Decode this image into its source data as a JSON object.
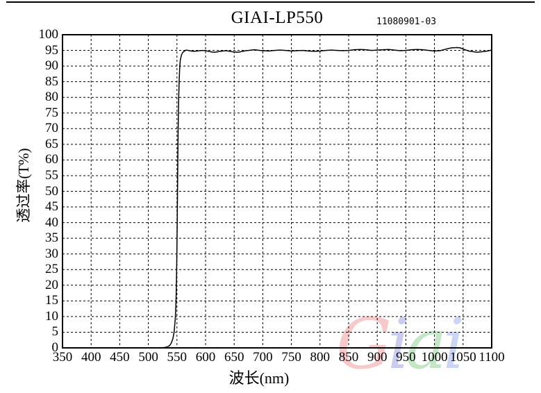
{
  "header": {
    "title": "GIAI-LP550",
    "serial": "11080901-03"
  },
  "watermark": {
    "text": "Giai",
    "letters": [
      {
        "char": "G",
        "color": "#f3a6a8"
      },
      {
        "char": "i",
        "color": "#a8a9e6"
      },
      {
        "char": "a",
        "color": "#9cd69e"
      },
      {
        "char": "i",
        "color": "#aabced"
      }
    ]
  },
  "chart_data": {
    "type": "line",
    "title": "GIAI-LP550",
    "xlabel": "波长(nm)",
    "ylabel": "透过率(T%)",
    "xlim": [
      350,
      1100
    ],
    "ylim": [
      0,
      100
    ],
    "x_ticks": [
      350,
      400,
      450,
      500,
      550,
      600,
      650,
      700,
      750,
      800,
      850,
      900,
      950,
      1000,
      1050,
      1100
    ],
    "y_ticks": [
      0,
      5,
      10,
      15,
      20,
      25,
      30,
      35,
      40,
      45,
      50,
      55,
      60,
      65,
      70,
      75,
      80,
      85,
      90,
      95,
      100
    ],
    "grid": "dashed-both-axes",
    "legend": "none",
    "line_color": "#000000",
    "description": "Long-pass filter transmission: ~0% below 540nm, sharp cut-on at ~550nm, ~95% transmission from 560-1100nm",
    "series": [
      {
        "name": "transmittance",
        "points": [
          [
            350,
            0
          ],
          [
            375,
            0
          ],
          [
            400,
            0
          ],
          [
            425,
            0
          ],
          [
            450,
            0
          ],
          [
            475,
            0
          ],
          [
            500,
            0
          ],
          [
            510,
            0
          ],
          [
            520,
            0.05
          ],
          [
            528,
            0.1
          ],
          [
            533,
            0.3
          ],
          [
            537,
            0.7
          ],
          [
            540,
            1.5
          ],
          [
            543,
            3
          ],
          [
            545,
            5
          ],
          [
            547,
            9
          ],
          [
            548,
            13
          ],
          [
            549,
            20
          ],
          [
            550,
            32
          ],
          [
            551,
            50
          ],
          [
            552,
            68
          ],
          [
            553,
            80
          ],
          [
            554,
            86
          ],
          [
            555,
            90
          ],
          [
            556,
            92
          ],
          [
            558,
            93.6
          ],
          [
            560,
            94.3
          ],
          [
            563,
            94.8
          ],
          [
            566,
            95.1
          ],
          [
            570,
            95.0
          ],
          [
            575,
            94.8
          ],
          [
            580,
            94.7
          ],
          [
            585,
            94.8
          ],
          [
            590,
            94.9
          ],
          [
            595,
            95.0
          ],
          [
            600,
            94.9
          ],
          [
            605,
            94.7
          ],
          [
            610,
            94.5
          ],
          [
            615,
            94.4
          ],
          [
            620,
            94.5
          ],
          [
            625,
            94.7
          ],
          [
            630,
            94.8
          ],
          [
            635,
            94.9
          ],
          [
            640,
            94.8
          ],
          [
            645,
            94.6
          ],
          [
            650,
            94.5
          ],
          [
            655,
            94.4
          ],
          [
            660,
            94.5
          ],
          [
            665,
            94.7
          ],
          [
            670,
            94.9
          ],
          [
            675,
            95.0
          ],
          [
            680,
            95.1
          ],
          [
            685,
            95.2
          ],
          [
            690,
            95.1
          ],
          [
            695,
            95.0
          ],
          [
            700,
            94.9
          ],
          [
            710,
            94.8
          ],
          [
            720,
            95.0
          ],
          [
            730,
            95.1
          ],
          [
            740,
            95.0
          ],
          [
            750,
            94.8
          ],
          [
            760,
            94.9
          ],
          [
            770,
            95.0
          ],
          [
            780,
            94.8
          ],
          [
            790,
            94.7
          ],
          [
            800,
            94.8
          ],
          [
            810,
            95.0
          ],
          [
            820,
            95.1
          ],
          [
            830,
            95.0
          ],
          [
            840,
            94.9
          ],
          [
            850,
            95.0
          ],
          [
            860,
            95.2
          ],
          [
            870,
            95.3
          ],
          [
            880,
            95.2
          ],
          [
            890,
            95.0
          ],
          [
            900,
            95.1
          ],
          [
            910,
            95.2
          ],
          [
            920,
            95.3
          ],
          [
            930,
            95.1
          ],
          [
            940,
            94.9
          ],
          [
            950,
            95.0
          ],
          [
            960,
            95.2
          ],
          [
            970,
            95.3
          ],
          [
            980,
            95.2
          ],
          [
            990,
            95.0
          ],
          [
            1000,
            94.8
          ],
          [
            1010,
            94.9
          ],
          [
            1020,
            95.4
          ],
          [
            1030,
            95.8
          ],
          [
            1040,
            95.9
          ],
          [
            1045,
            95.8
          ],
          [
            1050,
            95.4
          ],
          [
            1060,
            94.8
          ],
          [
            1070,
            94.5
          ],
          [
            1075,
            94.4
          ],
          [
            1080,
            94.5
          ],
          [
            1090,
            94.7
          ],
          [
            1100,
            95.1
          ]
        ]
      }
    ]
  }
}
